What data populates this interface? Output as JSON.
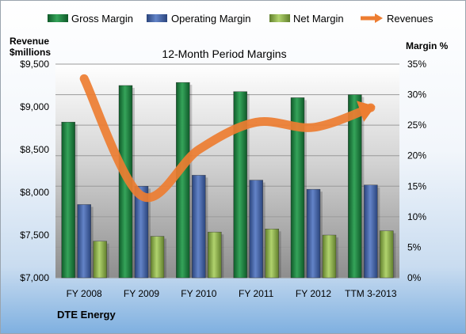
{
  "chart_data": {
    "type": "bar",
    "title": "12-Month Period Margins",
    "left_axis_label": [
      "Revenue",
      "$millions"
    ],
    "right_axis_label": "Margin %",
    "categories": [
      "FY 2008",
      "FY 2009",
      "FY 2010",
      "FY 2011",
      "FY 2012",
      "TTM 3-2013"
    ],
    "left_axis": {
      "min": 7000,
      "max": 9500,
      "ticks": [
        "$7,000",
        "$7,500",
        "$8,000",
        "$8,500",
        "$9,000",
        "$9,500"
      ],
      "tick_values": [
        7000,
        7500,
        8000,
        8500,
        9000,
        9500
      ]
    },
    "right_axis": {
      "min": 0,
      "max": 35,
      "ticks": [
        "0%",
        "5%",
        "10%",
        "15%",
        "20%",
        "25%",
        "30%",
        "35%"
      ],
      "tick_values": [
        0,
        5,
        10,
        15,
        20,
        25,
        30,
        35
      ]
    },
    "series": [
      {
        "name": "Gross Margin",
        "axis": "right",
        "kind": "bar",
        "color": "#1e7a3c",
        "values": [
          25.5,
          31.5,
          32.0,
          30.5,
          29.5,
          30.0
        ]
      },
      {
        "name": "Operating Margin",
        "axis": "right",
        "kind": "bar",
        "color": "#3d5fa6",
        "values": [
          12.0,
          15.0,
          16.8,
          16.0,
          14.5,
          15.2
        ]
      },
      {
        "name": "Net Margin",
        "axis": "right",
        "kind": "bar",
        "color": "#8db348",
        "values": [
          6.0,
          6.8,
          7.5,
          8.0,
          7.0,
          7.7
        ]
      },
      {
        "name": "Revenues",
        "axis": "left",
        "kind": "line",
        "color": "#ed7d31",
        "values": [
          9330,
          7960,
          8500,
          8820,
          8760,
          8990
        ]
      }
    ],
    "legend_position": "top",
    "grid": true
  },
  "footer": {
    "company": "DTE Energy"
  }
}
